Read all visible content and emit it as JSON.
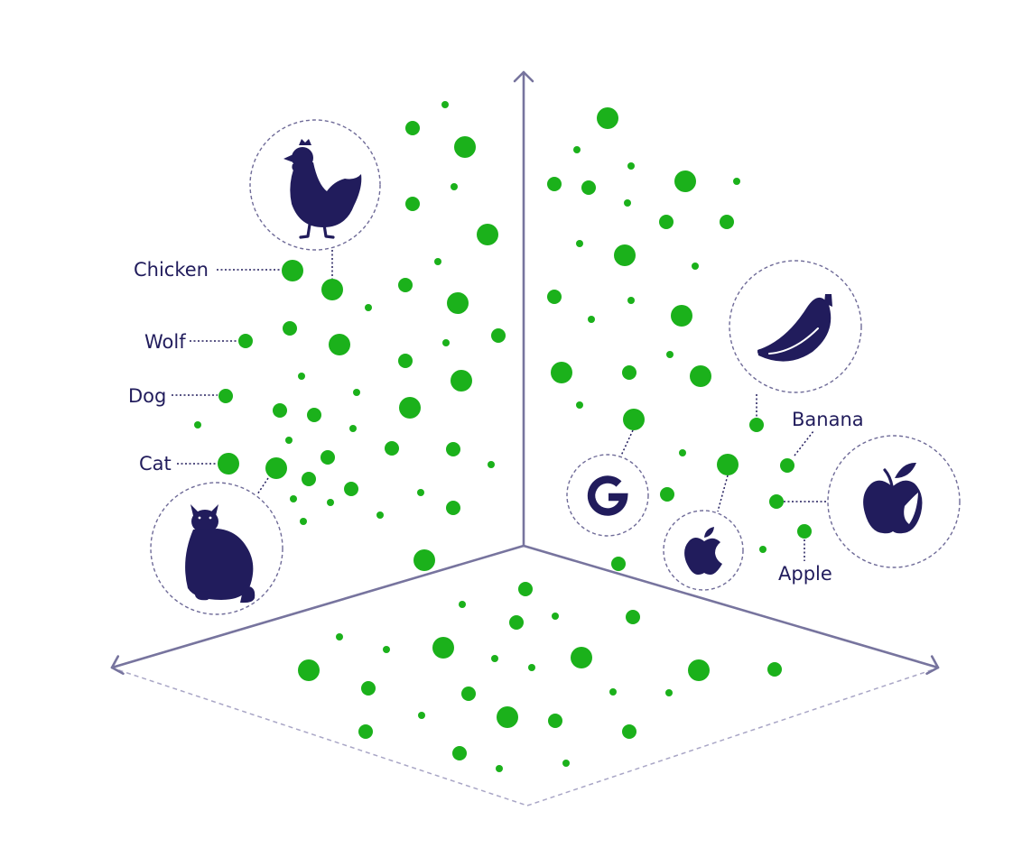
{
  "labels": {
    "chicken": "Chicken",
    "wolf": "Wolf",
    "dog": "Dog",
    "cat": "Cat",
    "banana": "Banana",
    "apple": "Apple"
  },
  "icons": {
    "chicken": "chicken-icon",
    "cat": "cat-icon",
    "banana": "banana-icon",
    "apple": "apple-fruit-icon",
    "google": "google-logo-icon",
    "apple_logo": "apple-logo-icon"
  },
  "colors": {
    "dot": "#1bb11b",
    "ink": "#211c5c",
    "axis": "#77749e",
    "dash": "#9a97bb"
  }
}
